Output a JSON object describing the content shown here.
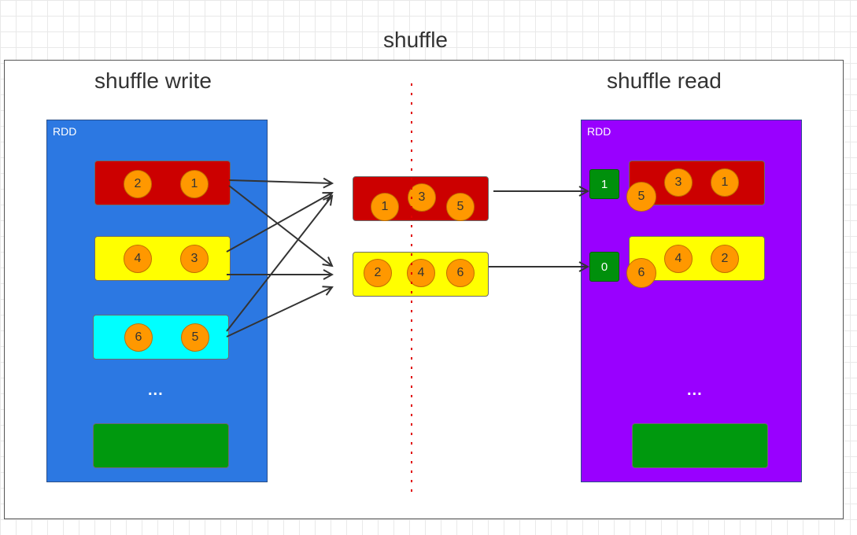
{
  "title": "shuffle",
  "write_side": {
    "title": "shuffle write",
    "rdd_label": "RDD",
    "partitions": [
      {
        "color": "#cc0000",
        "values": [
          "2",
          "1"
        ]
      },
      {
        "color": "#ffff00",
        "values": [
          "4",
          "3"
        ]
      },
      {
        "color": "#00ffff",
        "values": [
          "6",
          "5"
        ]
      }
    ],
    "ellipsis": "...",
    "last_partition_color": "#00990e"
  },
  "middle": {
    "partitions": [
      {
        "color": "#cc0000",
        "values": [
          "1",
          "3",
          "5"
        ]
      },
      {
        "color": "#ffff00",
        "values": [
          "2",
          "4",
          "6"
        ]
      }
    ]
  },
  "read_side": {
    "title": "shuffle read",
    "rdd_label": "RDD",
    "partitions": [
      {
        "color": "#cc0000",
        "tag": "1",
        "values": [
          "5",
          "3",
          "1"
        ]
      },
      {
        "color": "#ffff00",
        "tag": "0",
        "values": [
          "6",
          "4",
          "2"
        ]
      }
    ],
    "ellipsis": "...",
    "last_partition_color": "#00990e"
  },
  "colors": {
    "write_rdd": "#2c78e2",
    "read_rdd": "#9900ff",
    "circle": "#ff9800",
    "divider": "#e00000",
    "arrow": "#333333"
  }
}
